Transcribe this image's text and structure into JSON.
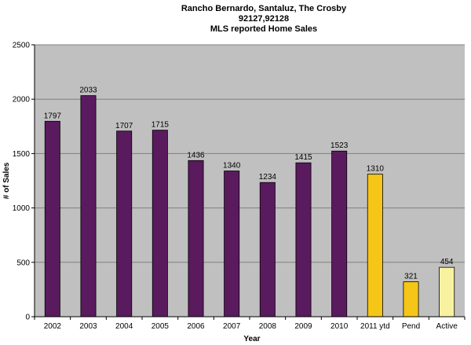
{
  "chart_data": {
    "type": "bar",
    "title": [
      "Rancho Bernardo, Santaluz, The Crosby",
      "92127,92128",
      "MLS reported Home Sales"
    ],
    "xlabel": "Year",
    "ylabel": "# of Sales",
    "ylim": [
      0,
      2500
    ],
    "yticks": [
      0,
      500,
      1000,
      1500,
      2000,
      2500
    ],
    "grid": true,
    "legend": "none",
    "plot_background": "#c0c0c0",
    "categories": [
      "2002",
      "2003",
      "2004",
      "2005",
      "2006",
      "2007",
      "2008",
      "2009",
      "2010",
      "2011 ytd",
      "Pend",
      "Active"
    ],
    "values": [
      1797,
      2033,
      1707,
      1715,
      1436,
      1340,
      1234,
      1415,
      1523,
      1310,
      321,
      454
    ],
    "bar_colors": [
      "#5a1a5e",
      "#5a1a5e",
      "#5a1a5e",
      "#5a1a5e",
      "#5a1a5e",
      "#5a1a5e",
      "#5a1a5e",
      "#5a1a5e",
      "#5a1a5e",
      "#f5c518",
      "#f5c518",
      "#f8f2a0"
    ]
  }
}
